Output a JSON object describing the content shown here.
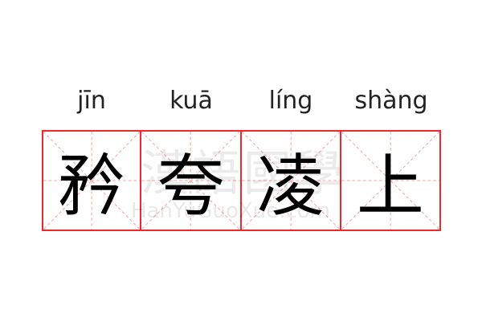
{
  "colors": {
    "border": "#f0282a",
    "guide": "#f5a0a0",
    "text": "#000000"
  },
  "words": [
    {
      "pinyin": "jīn",
      "char": "矜"
    },
    {
      "pinyin": "kuā",
      "char": "夸"
    },
    {
      "pinyin": "líng",
      "char": "凌"
    },
    {
      "pinyin": "shàng",
      "char": "上"
    }
  ],
  "watermark": {
    "cn": "漢語國學",
    "en": "HanYuGuoXue.com"
  }
}
